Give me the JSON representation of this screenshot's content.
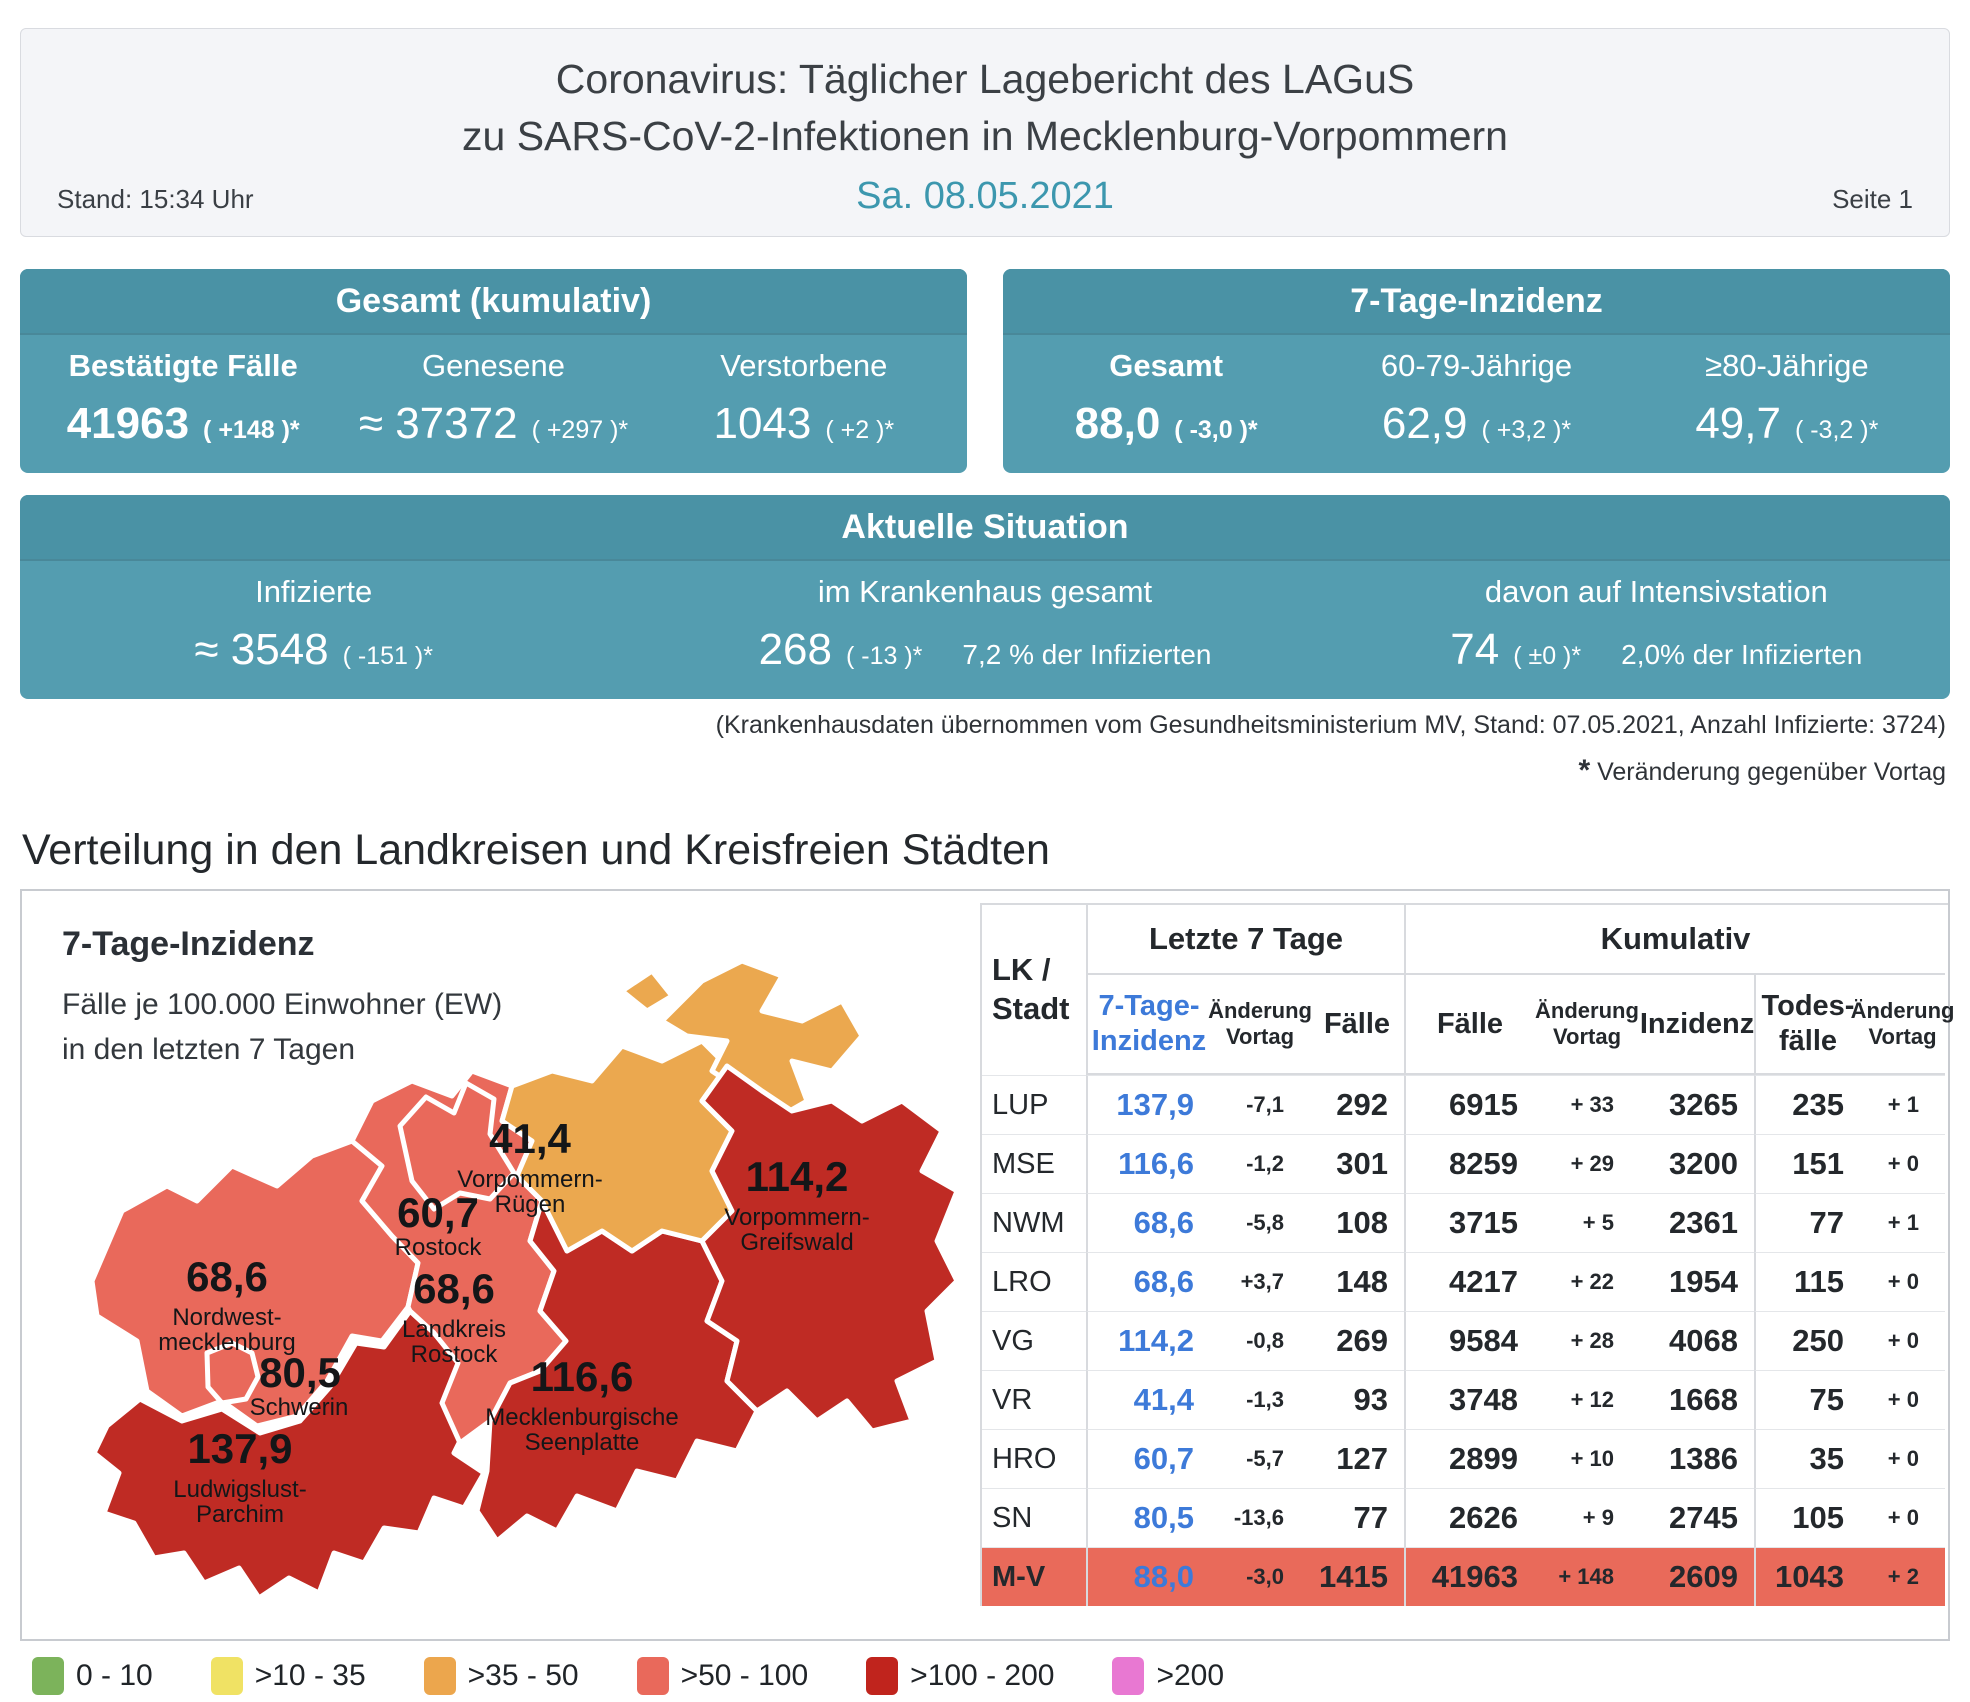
{
  "header": {
    "title_line1": "Coronavirus: Täglicher Lagebericht des LAGuS",
    "title_line2": "zu SARS-CoV-2-Infektionen in Mecklenburg-Vorpommern",
    "stand": "Stand: 15:34 Uhr",
    "date": "Sa. 08.05.2021",
    "page": "Seite 1"
  },
  "colors": {
    "teal_band": "#4a92a5",
    "teal_body": "#549db0",
    "date_teal": "#3c97ae",
    "table_blue": "#3d7ad9",
    "highlight_row": "#e96a5a"
  },
  "panels": {
    "gesamt": {
      "title": "Gesamt (kumulativ)",
      "cols": [
        {
          "label": "Bestätigte Fälle",
          "value": "41963",
          "delta": "( +148 )*"
        },
        {
          "label": "Genesene",
          "value": "≈ 37372",
          "delta": "( +297 )*"
        },
        {
          "label": "Verstorbene",
          "value": "1043",
          "delta": "( +2 )*"
        }
      ]
    },
    "inzidenz": {
      "title": "7-Tage-Inzidenz",
      "cols": [
        {
          "label": "Gesamt",
          "value": "88,0",
          "delta": "( -3,0 )*"
        },
        {
          "label": "60-79-Jährige",
          "value": "62,9",
          "delta": "( +3,2 )*"
        },
        {
          "label": "≥80-Jährige",
          "value": "49,7",
          "delta": "( -3,2 )*"
        }
      ]
    },
    "situation": {
      "title": "Aktuelle Situation",
      "cols": [
        {
          "label": "Infizierte",
          "value": "≈ 3548",
          "delta": "( -151 )*",
          "extra": ""
        },
        {
          "label": "im Krankenhaus gesamt",
          "value": "268",
          "delta": "( -13 )*",
          "extra": "7,2 % der Infizierten"
        },
        {
          "label": "davon auf Intensivstation",
          "value": "74",
          "delta": "( ±0 )*",
          "extra": "2,0% der Infizierten"
        }
      ]
    }
  },
  "footnotes": {
    "hospital": "(Krankenhausdaten übernommen vom Gesundheitsministerium MV, Stand: 07.05.2021, Anzahl Infizierte: 3724)",
    "asterisk_mark": "*",
    "asterisk_text": "Veränderung gegenüber Vortag"
  },
  "section_title": "Verteilung in den Landkreisen und Kreisfreien Städten",
  "map": {
    "title": "7-Tage-Inzidenz",
    "subtitle_line1": "Fälle je 100.000 Einwohner (EW)",
    "subtitle_line2": "in den letzten 7 Tagen",
    "regions": [
      {
        "id": "nwm",
        "value": "68,6",
        "name_lines": [
          "Nordwest-",
          "mecklenburg"
        ],
        "color": "#e9695b"
      },
      {
        "id": "sn",
        "value": "80,5",
        "name_lines": [
          "Schwerin"
        ],
        "color": "#e9695b"
      },
      {
        "id": "lup",
        "value": "137,9",
        "name_lines": [
          "Ludwigslust-",
          "Parchim"
        ],
        "color": "#bf2b24"
      },
      {
        "id": "lro",
        "value": "68,6",
        "name_lines": [
          "Landkreis",
          "Rostock"
        ],
        "color": "#e9695b"
      },
      {
        "id": "hro",
        "value": "60,7",
        "name_lines": [
          "Rostock"
        ],
        "color": "#e9695b"
      },
      {
        "id": "vr",
        "value": "41,4",
        "name_lines": [
          "Vorpommern-",
          "Rügen"
        ],
        "color": "#eba84f"
      },
      {
        "id": "vg",
        "value": "114,2",
        "name_lines": [
          "Vorpommern-",
          "Greifswald"
        ],
        "color": "#bf2b24"
      },
      {
        "id": "mse",
        "value": "116,6",
        "name_lines": [
          "Mecklenburgische",
          "Seenplatte"
        ],
        "color": "#bf2b24"
      }
    ]
  },
  "table": {
    "col_lk": "LK /\nStadt",
    "group_letzte": "Letzte 7 Tage",
    "group_kumulativ": "Kumulativ",
    "col_inzidenz7": "7-Tage-\nInzidenz",
    "col_aenderung7": "Änderung\nVortag",
    "col_faelle7": "Fälle",
    "col_kfaelle": "Fälle",
    "col_kaenderung": "Änderung\nVortag",
    "col_kinzidenz": "Inzidenz",
    "col_todesfaelle": "Todes-\nfälle",
    "col_taenderung": "Änderung\nVortag",
    "rows": [
      {
        "lk": "LUP",
        "i7": "137,9",
        "d7": "-7,1",
        "f7": "292",
        "kf": "6915",
        "kd": "+ 33",
        "ki": "3265",
        "tf": "235",
        "td": "+ 1",
        "highlight": false
      },
      {
        "lk": "MSE",
        "i7": "116,6",
        "d7": "-1,2",
        "f7": "301",
        "kf": "8259",
        "kd": "+ 29",
        "ki": "3200",
        "tf": "151",
        "td": "+ 0",
        "highlight": false
      },
      {
        "lk": "NWM",
        "i7": "68,6",
        "d7": "-5,8",
        "f7": "108",
        "kf": "3715",
        "kd": "+ 5",
        "ki": "2361",
        "tf": "77",
        "td": "+ 1",
        "highlight": false
      },
      {
        "lk": "LRO",
        "i7": "68,6",
        "d7": "+3,7",
        "f7": "148",
        "kf": "4217",
        "kd": "+ 22",
        "ki": "1954",
        "tf": "115",
        "td": "+ 0",
        "highlight": false
      },
      {
        "lk": "VG",
        "i7": "114,2",
        "d7": "-0,8",
        "f7": "269",
        "kf": "9584",
        "kd": "+ 28",
        "ki": "4068",
        "tf": "250",
        "td": "+ 0",
        "highlight": false
      },
      {
        "lk": "VR",
        "i7": "41,4",
        "d7": "-1,3",
        "f7": "93",
        "kf": "3748",
        "kd": "+ 12",
        "ki": "1668",
        "tf": "75",
        "td": "+ 0",
        "highlight": false
      },
      {
        "lk": "HRO",
        "i7": "60,7",
        "d7": "-5,7",
        "f7": "127",
        "kf": "2899",
        "kd": "+ 10",
        "ki": "1386",
        "tf": "35",
        "td": "+ 0",
        "highlight": false
      },
      {
        "lk": "SN",
        "i7": "80,5",
        "d7": "-13,6",
        "f7": "77",
        "kf": "2626",
        "kd": "+ 9",
        "ki": "2745",
        "tf": "105",
        "td": "+ 0",
        "highlight": false
      },
      {
        "lk": "M-V",
        "i7": "88,0",
        "d7": "-3,0",
        "f7": "1415",
        "kf": "41963",
        "kd": "+ 148",
        "ki": "2609",
        "tf": "1043",
        "td": "+ 2",
        "highlight": true
      }
    ]
  },
  "legend": {
    "items": [
      {
        "label": "0 - 10",
        "color": "#7cb35b"
      },
      {
        "label": ">10 - 35",
        "color": "#f0e264"
      },
      {
        "label": ">35 - 50",
        "color": "#eca64d"
      },
      {
        "label": ">50 - 100",
        "color": "#e9695b"
      },
      {
        "label": ">100 - 200",
        "color": "#c0241d"
      },
      {
        "label": ">200",
        "color": "#e878d2"
      }
    ]
  }
}
